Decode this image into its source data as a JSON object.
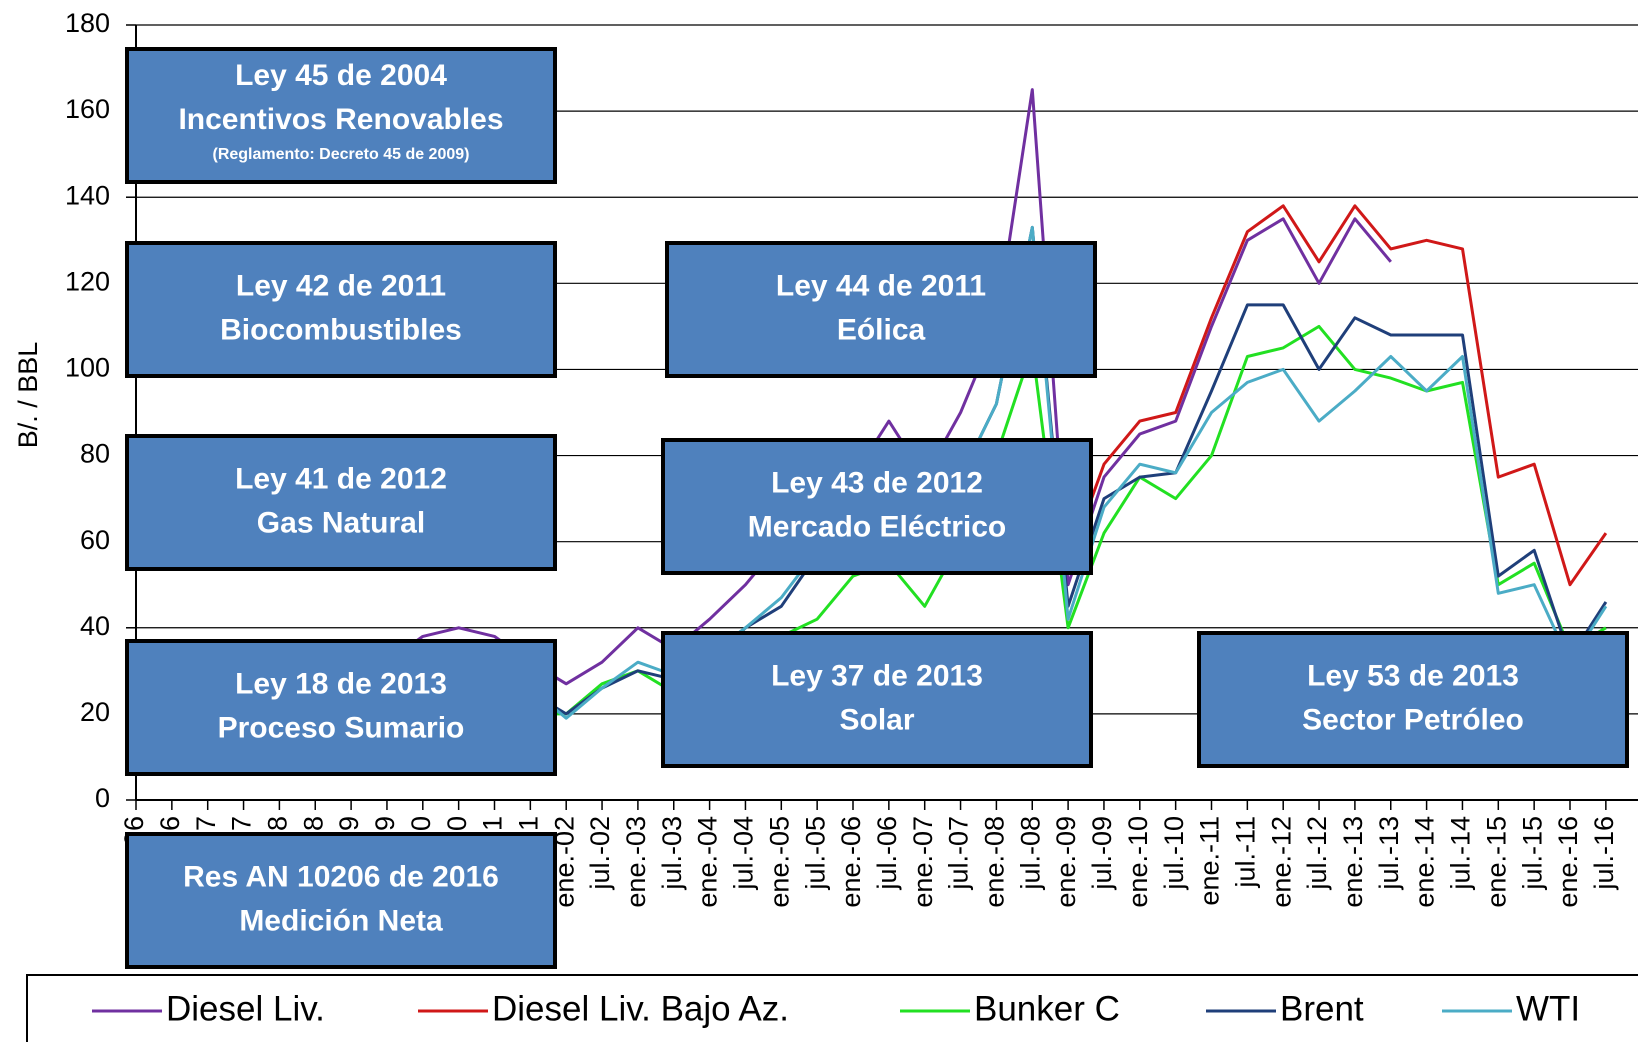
{
  "chart_data": {
    "type": "line",
    "y_label": "B/. / BBL",
    "categories": [
      "ene.-96",
      "jul.-96",
      "ene.-97",
      "jul.-97",
      "ene.-98",
      "jul.-98",
      "ene.-99",
      "jul.-99",
      "ene.-00",
      "jul.-00",
      "ene.-01",
      "jul.-01",
      "ene.-02",
      "jul.-02",
      "ene.-03",
      "jul.-03",
      "ene.-04",
      "jul.-04",
      "ene.-05",
      "jul.-05",
      "ene.-06",
      "jul.-06",
      "ene.-07",
      "jul.-07",
      "ene.-08",
      "jul.-08",
      "ene.-09",
      "jul.-09",
      "ene.-10",
      "jul.-10",
      "ene.-11",
      "jul.-11",
      "ene.-12",
      "jul.-12",
      "ene.-13",
      "jul.-13",
      "ene.-14",
      "jul.-14",
      "ene.-15",
      "jul.-15",
      "ene.-16",
      "jul.-16"
    ],
    "series": [
      {
        "name": "Diesel Liv.",
        "color": "#7030a0",
        "values": [
          25,
          24,
          24,
          22,
          20,
          20,
          28,
          32,
          38,
          40,
          38,
          32,
          27,
          32,
          40,
          35,
          42,
          50,
          60,
          80,
          75,
          88,
          75,
          90,
          110,
          165,
          50,
          75,
          85,
          88,
          110,
          130,
          135,
          120,
          135,
          125,
          null,
          null,
          null,
          null,
          null,
          null
        ]
      },
      {
        "name": "Diesel Liv. Bajo Az.",
        "color": "#d01818",
        "values": [
          null,
          null,
          null,
          null,
          null,
          null,
          null,
          null,
          null,
          null,
          null,
          null,
          null,
          null,
          null,
          null,
          null,
          null,
          null,
          null,
          null,
          null,
          null,
          null,
          null,
          null,
          55,
          78,
          88,
          90,
          112,
          132,
          138,
          125,
          138,
          128,
          130,
          128,
          75,
          78,
          50,
          62
        ]
      },
      {
        "name": "Bunker C",
        "color": "#22e022",
        "values": [
          15,
          14,
          15,
          13,
          11,
          10,
          13,
          17,
          22,
          23,
          22,
          20,
          20,
          27,
          30,
          25,
          28,
          30,
          38,
          42,
          52,
          55,
          45,
          60,
          80,
          105,
          40,
          62,
          75,
          70,
          80,
          103,
          105,
          110,
          100,
          98,
          95,
          97,
          50,
          55,
          35,
          40
        ]
      },
      {
        "name": "Brent",
        "color": "#1f3f7a",
        "values": [
          20,
          19,
          21,
          18,
          13,
          12,
          16,
          20,
          27,
          30,
          26,
          25,
          20,
          26,
          30,
          28,
          32,
          40,
          45,
          57,
          62,
          72,
          55,
          75,
          92,
          133,
          45,
          70,
          75,
          76,
          95,
          115,
          115,
          100,
          112,
          108,
          108,
          108,
          52,
          58,
          33,
          46
        ]
      },
      {
        "name": "WTI",
        "color": "#4bacc6",
        "values": [
          21,
          20,
          22,
          19,
          14,
          13,
          18,
          21,
          28,
          31,
          27,
          26,
          19,
          26,
          32,
          29,
          34,
          40,
          47,
          58,
          65,
          72,
          55,
          75,
          92,
          133,
          42,
          68,
          78,
          76,
          90,
          97,
          100,
          88,
          95,
          103,
          95,
          103,
          48,
          50,
          32,
          45
        ]
      }
    ],
    "ylim": [
      0,
      180
    ],
    "yticks": [
      0,
      20,
      40,
      60,
      80,
      100,
      120,
      140,
      160,
      180
    ],
    "grid": true,
    "annotations": [
      [
        "Ley 45 de 2004",
        "Incentivos Renovables",
        "(Reglamento: Decreto 45 de 2009)"
      ],
      [
        "Ley 42 de 2011",
        "Biocombustibles"
      ],
      [
        "Ley 44 de 2011",
        "Eólica"
      ],
      [
        "Ley  41 de 2012",
        "Gas Natural"
      ],
      [
        "Ley  43 de 2012",
        "Mercado Eléctrico"
      ],
      [
        "Ley  18 de 2013",
        "Proceso Sumario"
      ],
      [
        "Ley  37 de 2013",
        "Solar"
      ],
      [
        "Ley  53 de 2013",
        "Sector Petróleo"
      ],
      [
        "Res AN 10206 de 2016",
        "Medición Neta"
      ]
    ]
  }
}
